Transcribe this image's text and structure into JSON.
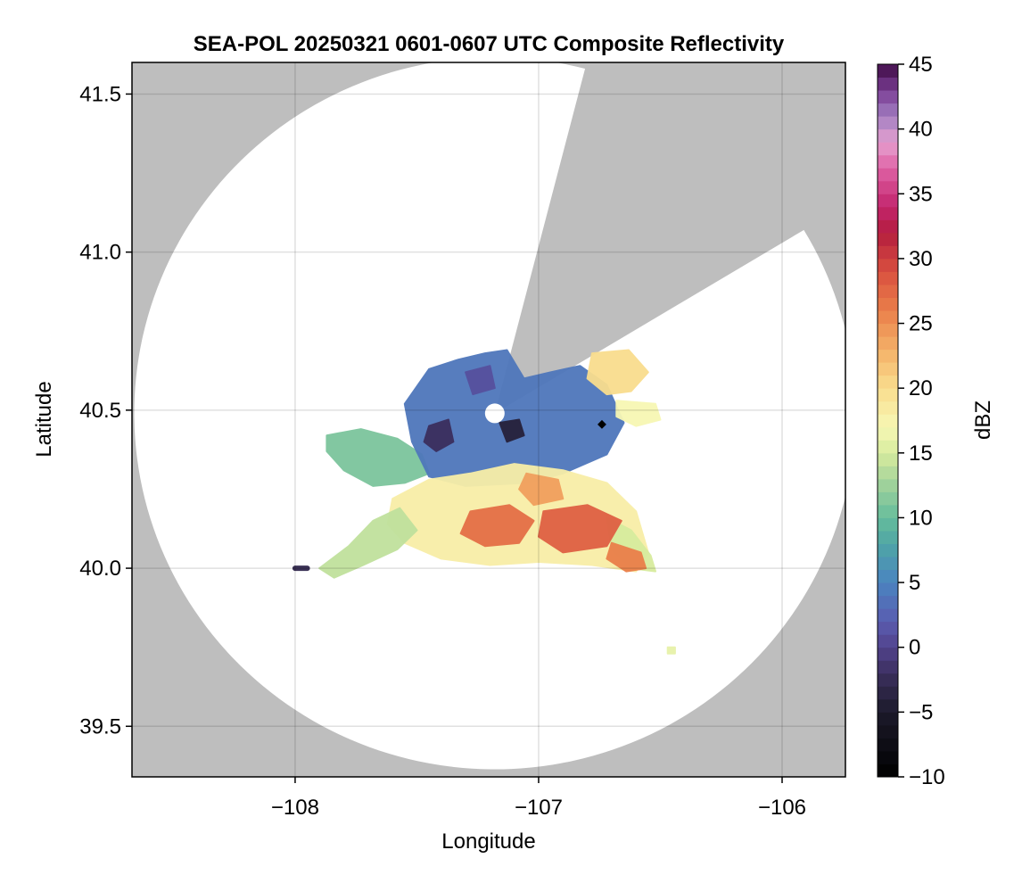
{
  "chart_data": {
    "type": "heatmap",
    "title": "SEA-POL 20250321 0601-0607 UTC Composite Reflectivity",
    "xlabel": "Longitude",
    "ylabel": "Latitude",
    "xlim": [
      -108.67,
      -105.74
    ],
    "ylim": [
      39.34,
      41.6
    ],
    "x_ticks": [
      -108,
      -107,
      -106
    ],
    "x_tick_labels": [
      "−108",
      "−107",
      "−106"
    ],
    "y_ticks": [
      39.5,
      40.0,
      40.5,
      41.0,
      41.5
    ],
    "y_tick_labels": [
      "39.5",
      "40.0",
      "40.5",
      "41.0",
      "41.5"
    ],
    "grid": true,
    "background_color": "#bebebe",
    "radar": {
      "center": [
        -107.18,
        40.49
      ],
      "range_km": 125,
      "blocked_sector_deg_from_north": [
        14.5,
        59
      ]
    },
    "colorbar": {
      "label": "dBZ",
      "range": [
        -10,
        45
      ],
      "ticks": [
        -10,
        -5,
        0,
        5,
        10,
        15,
        20,
        25,
        30,
        35,
        40,
        45
      ],
      "tick_labels": [
        "−10",
        "−5",
        "0",
        "5",
        "10",
        "15",
        "20",
        "25",
        "30",
        "35",
        "40",
        "45"
      ],
      "colormap": "Spectral-like (black-purple-blue-green-yellow-orange-red-magenta-purple)",
      "stops": [
        {
          "value": -10,
          "color": "#000000"
        },
        {
          "value": -5,
          "color": "#1c1a2a"
        },
        {
          "value": -2,
          "color": "#3b2f5e"
        },
        {
          "value": 0,
          "color": "#52438c"
        },
        {
          "value": 2,
          "color": "#5a5cb0"
        },
        {
          "value": 5,
          "color": "#4a84c0"
        },
        {
          "value": 8,
          "color": "#4fa5a5"
        },
        {
          "value": 10,
          "color": "#66bd9c"
        },
        {
          "value": 13,
          "color": "#a9d59b"
        },
        {
          "value": 15,
          "color": "#d7ec9e"
        },
        {
          "value": 17,
          "color": "#f7f7b4"
        },
        {
          "value": 20,
          "color": "#f9dd8e"
        },
        {
          "value": 23,
          "color": "#f4b068"
        },
        {
          "value": 26,
          "color": "#ea7f4a"
        },
        {
          "value": 29,
          "color": "#d9503f"
        },
        {
          "value": 32,
          "color": "#b41d3e"
        },
        {
          "value": 34,
          "color": "#c2256c"
        },
        {
          "value": 37,
          "color": "#df62a6"
        },
        {
          "value": 39,
          "color": "#e6a0cf"
        },
        {
          "value": 41,
          "color": "#a27ec1"
        },
        {
          "value": 43,
          "color": "#7a3d93"
        },
        {
          "value": 45,
          "color": "#3f0b46"
        }
      ]
    },
    "echo_regions": [
      {
        "name": "western-arm",
        "dbz": 11,
        "points": [
          [
            -107.87,
            40.42
          ],
          [
            -107.73,
            40.44
          ],
          [
            -107.58,
            40.41
          ],
          [
            -107.48,
            40.36
          ],
          [
            -107.45,
            40.3
          ],
          [
            -107.55,
            40.27
          ],
          [
            -107.68,
            40.26
          ],
          [
            -107.8,
            40.31
          ],
          [
            -107.87,
            40.37
          ]
        ]
      },
      {
        "name": "northern-cluster",
        "dbz": 4,
        "points": [
          [
            -107.55,
            40.52
          ],
          [
            -107.45,
            40.63
          ],
          [
            -107.33,
            40.66
          ],
          [
            -107.22,
            40.68
          ],
          [
            -107.13,
            40.69
          ],
          [
            -107.06,
            40.6
          ],
          [
            -106.95,
            40.62
          ],
          [
            -106.83,
            40.64
          ],
          [
            -106.72,
            40.58
          ],
          [
            -106.65,
            40.46
          ],
          [
            -106.72,
            40.36
          ],
          [
            -106.9,
            40.3
          ],
          [
            -107.05,
            40.27
          ],
          [
            -107.3,
            40.26
          ],
          [
            -107.45,
            40.29
          ],
          [
            -107.52,
            40.4
          ]
        ]
      },
      {
        "name": "central-band",
        "dbz": 18,
        "points": [
          [
            -107.45,
            40.28
          ],
          [
            -107.28,
            40.3
          ],
          [
            -107.1,
            40.33
          ],
          [
            -106.9,
            40.31
          ],
          [
            -106.72,
            40.27
          ],
          [
            -106.6,
            40.18
          ],
          [
            -106.55,
            40.05
          ],
          [
            -106.6,
            39.99
          ],
          [
            -106.78,
            40.01
          ],
          [
            -107.0,
            40.02
          ],
          [
            -107.2,
            40.01
          ],
          [
            -107.4,
            40.03
          ],
          [
            -107.55,
            40.08
          ],
          [
            -107.62,
            40.14
          ],
          [
            -107.6,
            40.22
          ]
        ]
      },
      {
        "name": "southwest-arm",
        "dbz": 14,
        "points": [
          [
            -107.9,
            40.0
          ],
          [
            -107.78,
            40.07
          ],
          [
            -107.68,
            40.15
          ],
          [
            -107.57,
            40.19
          ],
          [
            -107.5,
            40.12
          ],
          [
            -107.58,
            40.06
          ],
          [
            -107.72,
            40.01
          ],
          [
            -107.84,
            39.97
          ]
        ]
      },
      {
        "name": "southeast-arm",
        "dbz": 15,
        "points": [
          [
            -106.72,
            40.16
          ],
          [
            -106.62,
            40.12
          ],
          [
            -106.54,
            40.04
          ],
          [
            -106.52,
            39.99
          ],
          [
            -106.62,
            40.0
          ],
          [
            -106.7,
            40.06
          ]
        ]
      },
      {
        "name": "northeast-cell",
        "dbz": 20,
        "points": [
          [
            -106.78,
            40.68
          ],
          [
            -106.63,
            40.69
          ],
          [
            -106.55,
            40.62
          ],
          [
            -106.62,
            40.56
          ],
          [
            -106.72,
            40.55
          ],
          [
            -106.8,
            40.6
          ]
        ]
      },
      {
        "name": "east-cell",
        "dbz": 17,
        "points": [
          [
            -106.68,
            40.53
          ],
          [
            -106.52,
            40.52
          ],
          [
            -106.5,
            40.47
          ],
          [
            -106.6,
            40.45
          ],
          [
            -106.68,
            40.48
          ]
        ]
      },
      {
        "name": "core-a",
        "dbz": 27,
        "points": [
          [
            -107.28,
            40.18
          ],
          [
            -107.12,
            40.2
          ],
          [
            -107.02,
            40.15
          ],
          [
            -107.08,
            40.08
          ],
          [
            -107.22,
            40.07
          ],
          [
            -107.32,
            40.11
          ]
        ]
      },
      {
        "name": "core-b",
        "dbz": 28,
        "points": [
          [
            -106.98,
            40.18
          ],
          [
            -106.8,
            40.2
          ],
          [
            -106.66,
            40.15
          ],
          [
            -106.72,
            40.07
          ],
          [
            -106.9,
            40.05
          ],
          [
            -107.0,
            40.1
          ]
        ]
      },
      {
        "name": "core-c",
        "dbz": 24,
        "points": [
          [
            -107.05,
            40.3
          ],
          [
            -106.92,
            40.28
          ],
          [
            -106.9,
            40.22
          ],
          [
            -107.02,
            40.2
          ],
          [
            -107.08,
            40.25
          ]
        ]
      },
      {
        "name": "core-d",
        "dbz": 26,
        "points": [
          [
            -106.7,
            40.08
          ],
          [
            -106.58,
            40.05
          ],
          [
            -106.56,
            40.0
          ],
          [
            -106.64,
            39.99
          ],
          [
            -106.72,
            40.03
          ]
        ]
      },
      {
        "name": "weak-core-west",
        "dbz": -3,
        "points": [
          [
            -108.0,
            40.0
          ],
          [
            -107.95,
            40.0
          ]
        ]
      },
      {
        "name": "weak-core-north",
        "dbz": -2,
        "points": [
          [
            -107.45,
            40.45
          ],
          [
            -107.37,
            40.47
          ],
          [
            -107.35,
            40.4
          ],
          [
            -107.42,
            40.37
          ],
          [
            -107.47,
            40.4
          ]
        ]
      },
      {
        "name": "weak-core-center",
        "dbz": -4,
        "points": [
          [
            -107.16,
            40.46
          ],
          [
            -107.08,
            40.47
          ],
          [
            -107.06,
            40.42
          ],
          [
            -107.13,
            40.4
          ]
        ]
      },
      {
        "name": "weak-streak-north",
        "dbz": 1,
        "points": [
          [
            -107.3,
            40.62
          ],
          [
            -107.2,
            40.64
          ],
          [
            -107.18,
            40.57
          ],
          [
            -107.27,
            40.55
          ]
        ]
      },
      {
        "name": "isolated-pixel",
        "dbz": 16,
        "points": [
          [
            -106.47,
            39.75
          ],
          [
            -106.44,
            39.75
          ],
          [
            -106.44,
            39.73
          ],
          [
            -106.47,
            39.73
          ]
        ]
      }
    ]
  }
}
